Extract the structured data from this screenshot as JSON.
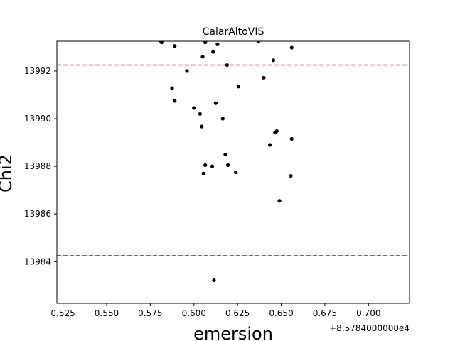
{
  "chart_data": {
    "type": "scatter",
    "title": "CalarAltoVIS",
    "xlabel": "emersion",
    "ylabel": "Chi2",
    "x_offset_label": "+8.5784000000e4",
    "xlim": [
      0.5215,
      0.7235
    ],
    "ylim": [
      13982.25,
      13993.25
    ],
    "x_ticks": [
      0.525,
      0.55,
      0.575,
      0.6,
      0.625,
      0.65,
      0.675,
      0.7
    ],
    "x_tick_labels": [
      "0.525",
      "0.550",
      "0.575",
      "0.600",
      "0.625",
      "0.650",
      "0.675",
      "0.700"
    ],
    "y_ticks": [
      13984,
      13986,
      13988,
      13990,
      13992
    ],
    "y_tick_labels": [
      "13984",
      "13986",
      "13988",
      "13990",
      "13992"
    ],
    "grid": false,
    "hlines": [
      {
        "y": 13992.25,
        "color": "#d62728",
        "style": "dashed"
      },
      {
        "y": 13984.25,
        "color": "#d62728",
        "style": "dashed"
      }
    ],
    "marker_color": "#000000",
    "points": [
      {
        "x": 0.5805,
        "y": 13993.28
      },
      {
        "x": 0.5815,
        "y": 13993.2
      },
      {
        "x": 0.589,
        "y": 13993.05
      },
      {
        "x": 0.6065,
        "y": 13993.2
      },
      {
        "x": 0.6135,
        "y": 13993.12
      },
      {
        "x": 0.637,
        "y": 13993.25
      },
      {
        "x": 0.656,
        "y": 13992.98
      },
      {
        "x": 0.611,
        "y": 13992.8
      },
      {
        "x": 0.605,
        "y": 13992.6
      },
      {
        "x": 0.6455,
        "y": 13992.45
      },
      {
        "x": 0.619,
        "y": 13992.25
      },
      {
        "x": 0.596,
        "y": 13992.0
      },
      {
        "x": 0.64,
        "y": 13991.72
      },
      {
        "x": 0.5875,
        "y": 13991.28
      },
      {
        "x": 0.6255,
        "y": 13991.35
      },
      {
        "x": 0.589,
        "y": 13990.75
      },
      {
        "x": 0.6125,
        "y": 13990.65
      },
      {
        "x": 0.6,
        "y": 13990.45
      },
      {
        "x": 0.6035,
        "y": 13990.2
      },
      {
        "x": 0.6165,
        "y": 13990.0
      },
      {
        "x": 0.6045,
        "y": 13989.67
      },
      {
        "x": 0.6475,
        "y": 13989.48
      },
      {
        "x": 0.6465,
        "y": 13989.42
      },
      {
        "x": 0.656,
        "y": 13989.15
      },
      {
        "x": 0.6435,
        "y": 13988.9
      },
      {
        "x": 0.618,
        "y": 13988.5
      },
      {
        "x": 0.6065,
        "y": 13988.05
      },
      {
        "x": 0.6195,
        "y": 13988.05
      },
      {
        "x": 0.6105,
        "y": 13988.0
      },
      {
        "x": 0.6055,
        "y": 13987.7
      },
      {
        "x": 0.624,
        "y": 13987.75
      },
      {
        "x": 0.6555,
        "y": 13987.6
      },
      {
        "x": 0.649,
        "y": 13986.55
      },
      {
        "x": 0.6115,
        "y": 13983.22
      }
    ]
  }
}
